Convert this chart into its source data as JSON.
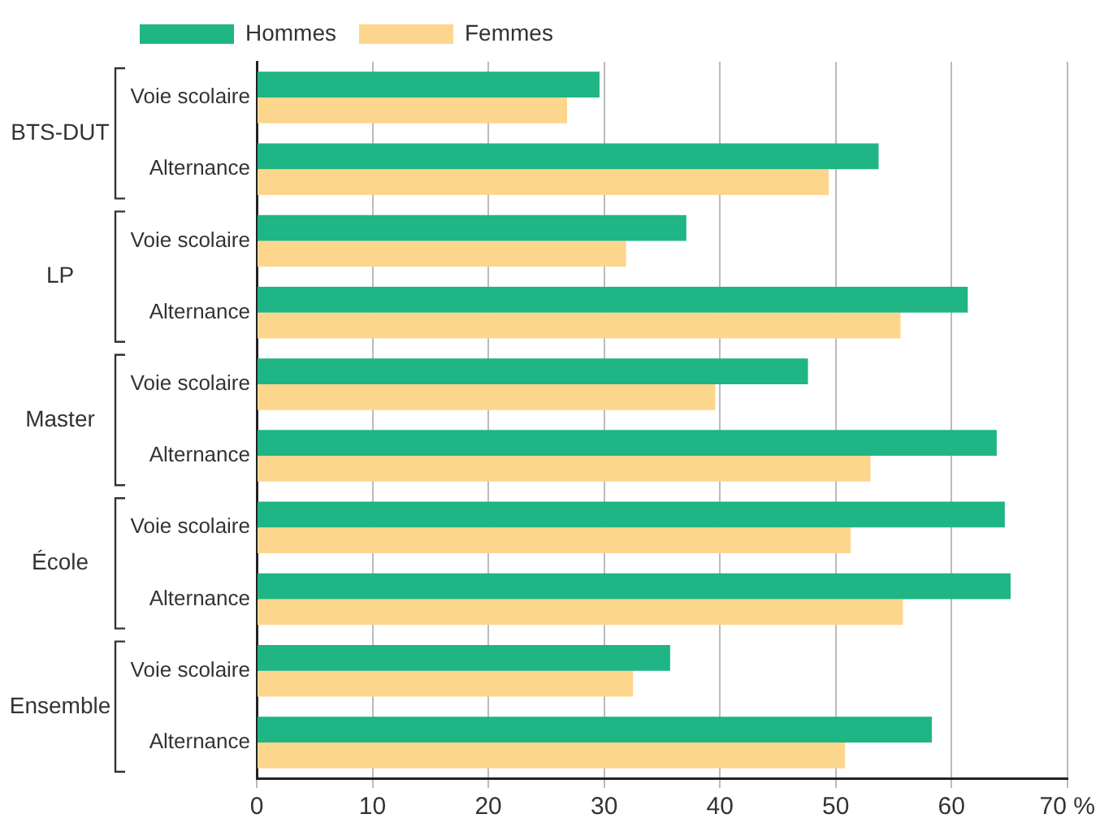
{
  "chart_data": {
    "type": "bar",
    "orientation": "horizontal",
    "categories": [
      "Voie scolaire",
      "Alternance",
      "Voie scolaire",
      "Alternance",
      "Voie scolaire",
      "Alternance",
      "Voie scolaire",
      "Alternance",
      "Voie scolaire",
      "Alternance"
    ],
    "series": [
      {
        "name": "Hommes",
        "color": "#1fb584",
        "values": [
          29.6,
          53.7,
          37.1,
          61.4,
          47.6,
          63.9,
          64.6,
          65.1,
          35.7,
          58.3
        ]
      },
      {
        "name": "Femmes",
        "color": "#fdd68e",
        "values": [
          26.8,
          49.4,
          31.9,
          55.6,
          39.6,
          53.0,
          51.3,
          55.8,
          32.5,
          50.8
        ]
      }
    ],
    "annotations": [
      "BTS-DUT",
      "LP",
      "Master",
      "École",
      "Ensemble"
    ],
    "xlim": [
      0,
      70
    ],
    "xticks": [
      0,
      10,
      20,
      30,
      40,
      50,
      60,
      {
        "value": 70,
        "label": "70 %"
      }
    ],
    "grid": "x",
    "legend": "top left"
  }
}
